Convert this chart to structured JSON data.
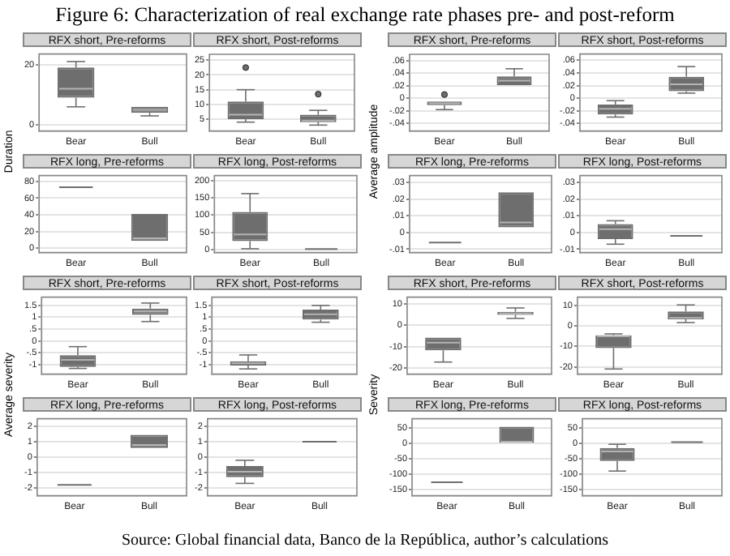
{
  "chart_data": [
    {
      "type": "box",
      "title": "RFX short, Pre-reforms",
      "ylabel": "Duration",
      "annotations": [
        "Figure 6: Characterization of real exchange rate phases pre- and post-reform",
        "Source: Global financial data, Banco de la República, author’s calculations"
      ],
      "categories": [
        "Bear",
        "Bull"
      ],
      "color": "#6e6e6e",
      "grid": "y",
      "ylim": [
        -2,
        23.5
      ],
      "yticks": [
        0,
        20
      ],
      "boxes": [
        {
          "low": 6,
          "q1": 9,
          "median": 12,
          "q3": 19,
          "high": 21
        },
        {
          "low": 3,
          "q1": 4,
          "median": 5,
          "q3": 6,
          "high": 6
        }
      ]
    },
    {
      "type": "box",
      "title": "RFX short, Post-reforms",
      "categories": [
        "Bear",
        "Bull"
      ],
      "color": "#6e6e6e",
      "grid": "y",
      "marker": "circle",
      "ylim": [
        1,
        27
      ],
      "yticks": [
        5,
        10,
        15,
        20,
        25
      ],
      "boxes": [
        {
          "low": 4,
          "q1": 5,
          "median": 6.5,
          "q3": 11,
          "high": 15,
          "outliers": [
            22.5
          ]
        },
        {
          "low": 3,
          "q1": 4,
          "median": 4.5,
          "q3": 6.5,
          "high": 8,
          "outliers": [
            13.5
          ]
        }
      ]
    },
    {
      "type": "box",
      "title": "RFX long, Pre-reforms",
      "categories": [
        "Bear",
        "Bull"
      ],
      "color": "#6e6e6e",
      "grid": "y",
      "ylim": [
        -5,
        87
      ],
      "yticks": [
        0,
        20,
        40,
        60,
        80
      ],
      "boxes": [
        {
          "low": 73,
          "q1": 73,
          "median": 73,
          "q3": 73,
          "high": 73
        },
        {
          "low": 9,
          "q1": 9,
          "median": 12,
          "q3": 41,
          "high": 41
        }
      ]
    },
    {
      "type": "box",
      "title": "RFX long, Post-reforms",
      "categories": [
        "Bear",
        "Bull"
      ],
      "color": "#6e6e6e",
      "grid": "y",
      "ylim": [
        -8,
        214
      ],
      "yticks": [
        0,
        50,
        100,
        150,
        200
      ],
      "boxes": [
        {
          "low": 3,
          "q1": 25,
          "median": 44,
          "q3": 109,
          "high": 162
        },
        {
          "low": 2,
          "q1": 2,
          "median": 2,
          "q3": 2,
          "high": 2
        }
      ]
    },
    {
      "type": "box",
      "title": "RFX short, Pre-reforms",
      "ylabel": "Average amplitude",
      "categories": [
        "Bear",
        "Bull"
      ],
      "color": "#6e6e6e",
      "grid": "y",
      "marker": "circle",
      "ylim": [
        -0.052,
        0.07
      ],
      "yticks": [
        {
          "value": -0.04,
          "label": "-.04"
        },
        {
          "value": -0.02,
          "label": "-.02"
        },
        0,
        {
          "value": 0.02,
          "label": ".02"
        },
        {
          "value": 0.04,
          "label": ".04"
        },
        {
          "value": 0.06,
          "label": ".06"
        }
      ],
      "boxes": [
        {
          "low": -0.018,
          "q1": -0.011,
          "median": -0.008,
          "q3": -0.005,
          "high": -0.005,
          "outliers": [
            0.006
          ]
        },
        {
          "low": 0.021,
          "q1": 0.021,
          "median": 0.028,
          "q3": 0.035,
          "high": 0.047
        }
      ]
    },
    {
      "type": "box",
      "title": "RFX short, Post-reforms",
      "categories": [
        "Bear",
        "Bull"
      ],
      "color": "#6e6e6e",
      "grid": "y",
      "ylim": [
        -0.052,
        0.07
      ],
      "yticks": [
        {
          "value": -0.04,
          "label": "-.04"
        },
        {
          "value": -0.02,
          "label": "-.02"
        },
        0,
        {
          "value": 0.02,
          "label": ".02"
        },
        {
          "value": 0.04,
          "label": ".04"
        },
        {
          "value": 0.06,
          "label": ".06"
        }
      ],
      "boxes": [
        {
          "low": -0.03,
          "q1": -0.026,
          "median": -0.017,
          "q3": -0.01,
          "high": -0.004
        },
        {
          "low": 0.008,
          "q1": 0.011,
          "median": 0.022,
          "q3": 0.034,
          "high": 0.05
        }
      ]
    },
    {
      "type": "box",
      "title": "RFX long, Pre-reforms",
      "categories": [
        "Bear",
        "Bull"
      ],
      "color": "#6e6e6e",
      "grid": "y",
      "ylim": [
        -0.012,
        0.034
      ],
      "yticks": [
        {
          "value": -0.01,
          "label": "-.01"
        },
        0,
        {
          "value": 0.01,
          "label": ".01"
        },
        {
          "value": 0.02,
          "label": ".02"
        },
        {
          "value": 0.03,
          "label": ".03"
        }
      ],
      "boxes": [
        {
          "low": -0.006,
          "q1": -0.006,
          "median": -0.006,
          "q3": -0.006,
          "high": -0.006
        },
        {
          "low": 0.003,
          "q1": 0.003,
          "median": 0.006,
          "q3": 0.024,
          "high": 0.024
        }
      ]
    },
    {
      "type": "box",
      "title": "RFX long, Post-reforms",
      "categories": [
        "Bear",
        "Bull"
      ],
      "color": "#6e6e6e",
      "grid": "y",
      "ylim": [
        -0.012,
        0.034
      ],
      "yticks": [
        {
          "value": -0.01,
          "label": "-.01"
        },
        0,
        {
          "value": 0.01,
          "label": ".01"
        },
        {
          "value": 0.02,
          "label": ".02"
        },
        {
          "value": 0.03,
          "label": ".03"
        }
      ],
      "boxes": [
        {
          "low": -0.007,
          "q1": -0.004,
          "median": 0.002,
          "q3": 0.005,
          "high": 0.007
        },
        {
          "low": -0.002,
          "q1": -0.002,
          "median": -0.002,
          "q3": -0.002,
          "high": -0.002
        }
      ]
    },
    {
      "type": "box",
      "title": "RFX short, Pre-reforms",
      "ylabel": "Average severity",
      "categories": [
        "Bear",
        "Bull"
      ],
      "color": "#6e6e6e",
      "grid": "y",
      "ylim": [
        -1.4,
        1.85
      ],
      "yticks": [
        -1,
        {
          "value": -0.5,
          "label": "-.5"
        },
        0,
        {
          "value": 0.5,
          "label": ".5"
        },
        1,
        1.5
      ],
      "boxes": [
        {
          "low": -1.16,
          "q1": -1.1,
          "median": -0.8,
          "q3": -0.6,
          "high": -0.24
        },
        {
          "low": 0.82,
          "q1": 1.1,
          "median": 1.25,
          "q3": 1.37,
          "high": 1.6
        }
      ]
    },
    {
      "type": "box",
      "title": "RFX short, Post-reforms",
      "categories": [
        "Bear",
        "Bull"
      ],
      "color": "#6e6e6e",
      "grid": "y",
      "ylim": [
        -1.4,
        1.85
      ],
      "yticks": [
        -1,
        {
          "value": -0.5,
          "label": "-.5"
        },
        0,
        {
          "value": 0.5,
          "label": ".5"
        },
        1,
        1.5
      ],
      "boxes": [
        {
          "low": -1.18,
          "q1": -1.04,
          "median": -0.94,
          "q3": -0.86,
          "high": -0.59
        },
        {
          "low": 0.79,
          "q1": 0.9,
          "median": 1.13,
          "q3": 1.32,
          "high": 1.5
        }
      ]
    },
    {
      "type": "box",
      "title": "RFX long, Pre-reforms",
      "categories": [
        "Bear",
        "Bull"
      ],
      "color": "#6e6e6e",
      "grid": "y",
      "ylim": [
        -2.5,
        2.5
      ],
      "yticks": [
        -2,
        -1,
        0,
        1,
        2
      ],
      "boxes": [
        {
          "low": -1.8,
          "q1": -1.8,
          "median": -1.8,
          "q3": -1.8,
          "high": -1.8
        },
        {
          "low": 0.6,
          "q1": 0.6,
          "median": 0.8,
          "q3": 1.45,
          "high": 1.45
        }
      ]
    },
    {
      "type": "box",
      "title": "RFX long, Post-reforms",
      "categories": [
        "Bear",
        "Bull"
      ],
      "color": "#6e6e6e",
      "grid": "y",
      "ylim": [
        -2.5,
        2.5
      ],
      "yticks": [
        -2,
        -1,
        0,
        1,
        2
      ],
      "boxes": [
        {
          "low": -1.7,
          "q1": -1.3,
          "median": -0.94,
          "q3": -0.58,
          "high": -0.2
        },
        {
          "low": 1,
          "q1": 1,
          "median": 1,
          "q3": 1,
          "high": 1
        }
      ]
    },
    {
      "type": "box",
      "title": "RFX short, Pre-reforms",
      "ylabel": "Severity",
      "categories": [
        "Bear",
        "Bull"
      ],
      "color": "#6e6e6e",
      "grid": "y",
      "ylim": [
        -23,
        13.3
      ],
      "yticks": [
        -20,
        -10,
        0,
        10
      ],
      "boxes": [
        {
          "low": -17.3,
          "q1": -11.8,
          "median": -8.2,
          "q3": -5.8,
          "high": -5.8
        },
        {
          "low": 3.3,
          "q1": 4.9,
          "median": 5.6,
          "q3": 6.4,
          "high": 8.2
        }
      ]
    },
    {
      "type": "box",
      "title": "RFX short, Post-reforms",
      "categories": [
        "Bear",
        "Bull"
      ],
      "color": "#6e6e6e",
      "grid": "y",
      "ylim": [
        -23.5,
        14
      ],
      "yticks": [
        -20,
        -10,
        0,
        10
      ],
      "boxes": [
        {
          "low": -21,
          "q1": -10.8,
          "median": -5,
          "q3": -4.6,
          "high": -3.9
        },
        {
          "low": 1.6,
          "q1": 3.2,
          "median": 3.9,
          "q3": 7,
          "high": 10.2
        }
      ]
    },
    {
      "type": "box",
      "title": "RFX long, Pre-reforms",
      "categories": [
        "Bear",
        "Bull"
      ],
      "color": "#6e6e6e",
      "grid": "y",
      "ylim": [
        -170,
        80
      ],
      "yticks": [
        -150,
        -100,
        -50,
        0,
        50
      ],
      "boxes": [
        {
          "low": -126,
          "q1": -126,
          "median": -126,
          "q3": -126,
          "high": -126
        },
        {
          "low": 2,
          "q1": 2,
          "median": 5,
          "q3": 54,
          "high": 54
        }
      ]
    },
    {
      "type": "box",
      "title": "RFX long, Post-reforms",
      "categories": [
        "Bear",
        "Bull"
      ],
      "color": "#6e6e6e",
      "grid": "y",
      "ylim": [
        -170,
        80
      ],
      "yticks": [
        -150,
        -100,
        -50,
        0,
        50
      ],
      "boxes": [
        {
          "low": -90,
          "q1": -57,
          "median": -26,
          "q3": -15,
          "high": -3
        },
        {
          "low": 4,
          "q1": 4,
          "median": 4,
          "q3": 4,
          "high": 4
        }
      ]
    }
  ]
}
